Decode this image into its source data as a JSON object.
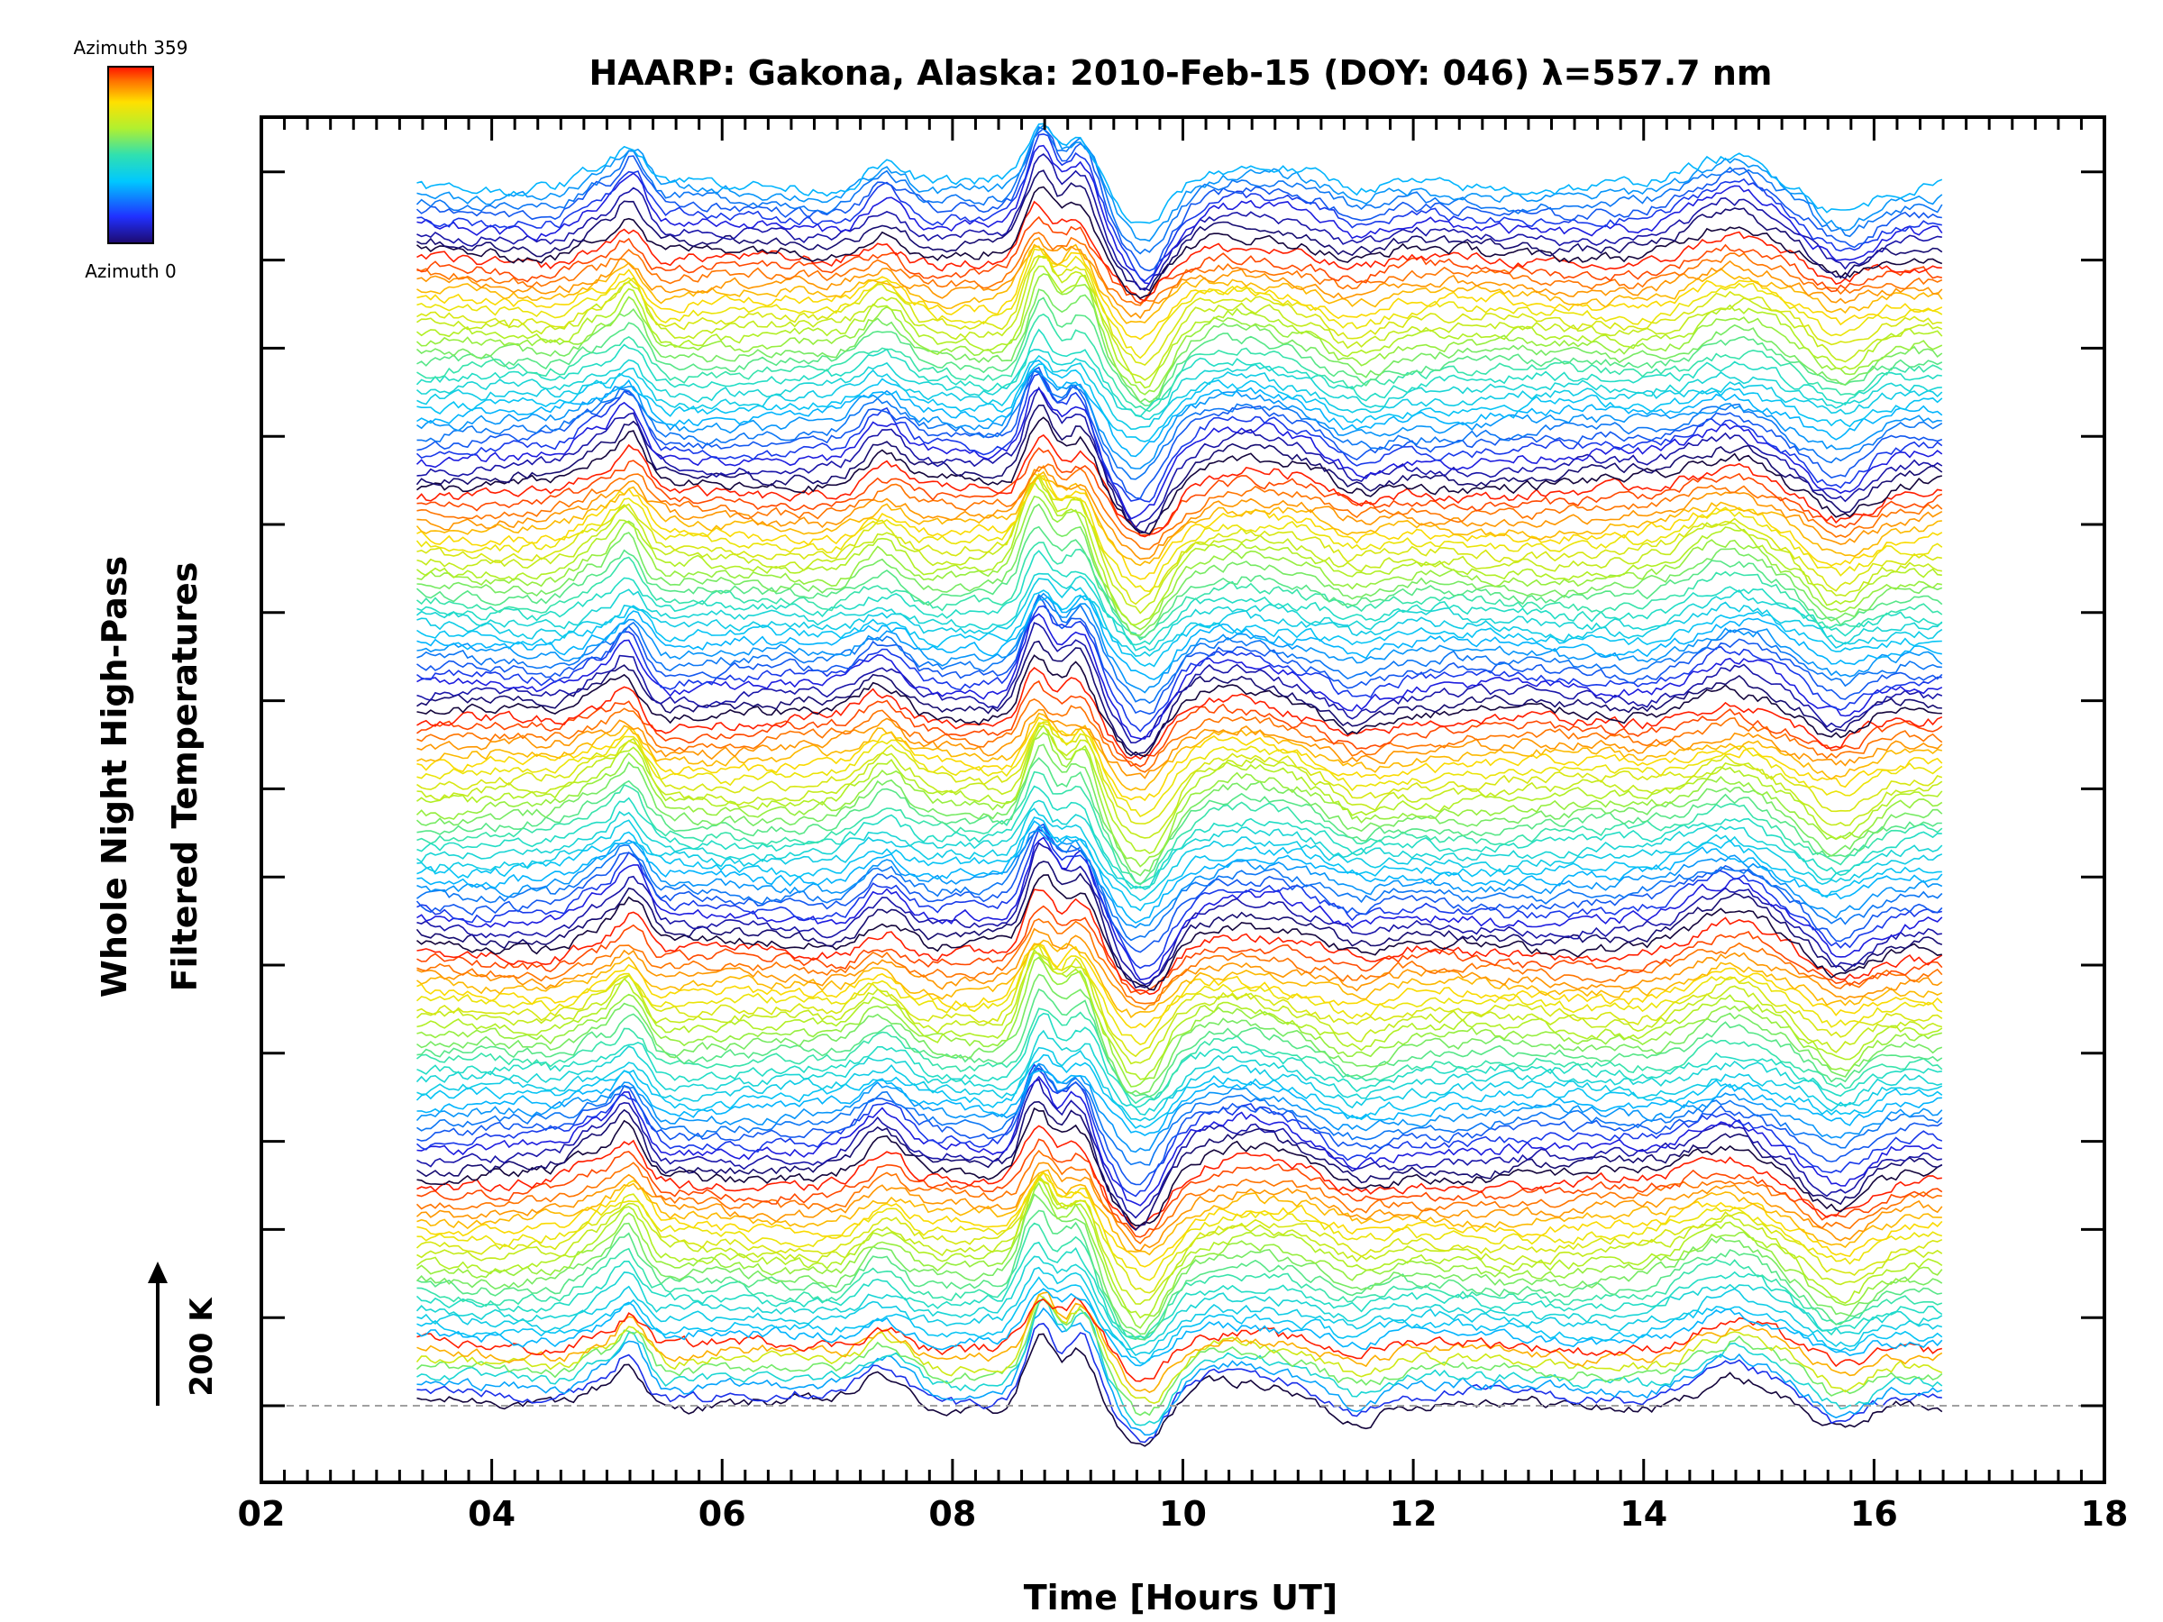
{
  "chart_data": {
    "type": "line",
    "title": "HAARP: Gakona,  Alaska: 2010-Feb-15 (DOY: 046) λ=557.7 nm",
    "xlabel": "Time [Hours UT]",
    "ylabel_line1": "Whole Night High-Pass",
    "ylabel_line2": "Filtered Temperatures",
    "xlim": [
      2,
      18
    ],
    "x_ticks": [
      "02",
      "04",
      "06",
      "08",
      "10",
      "12",
      "14",
      "16",
      "18"
    ],
    "data_x_range": [
      3.35,
      16.6
    ],
    "series_count": 144,
    "baseline_dashed": true,
    "scale_bar_label": "200 K",
    "colorbar": {
      "top_label": "Azimuth 359",
      "bottom_label": "Azimuth 0",
      "colormap": "rainbow",
      "min": 0,
      "max": 359
    },
    "features": [
      {
        "x": 4.9,
        "amp": 20,
        "width": 0.15
      },
      {
        "x": 5.2,
        "amp": 45,
        "width": 0.12
      },
      {
        "x": 7.4,
        "amp": 30,
        "width": 0.18
      },
      {
        "x": 8.75,
        "amp": 70,
        "width": 0.12
      },
      {
        "x": 9.1,
        "amp": 55,
        "width": 0.13
      },
      {
        "x": 9.65,
        "amp": -55,
        "width": 0.2
      },
      {
        "x": 10.5,
        "amp": 25,
        "width": 0.5
      },
      {
        "x": 11.5,
        "amp": -15,
        "width": 0.2
      },
      {
        "x": 14.75,
        "amp": 30,
        "width": 0.3
      },
      {
        "x": 15.7,
        "amp": -30,
        "width": 0.22
      }
    ]
  }
}
